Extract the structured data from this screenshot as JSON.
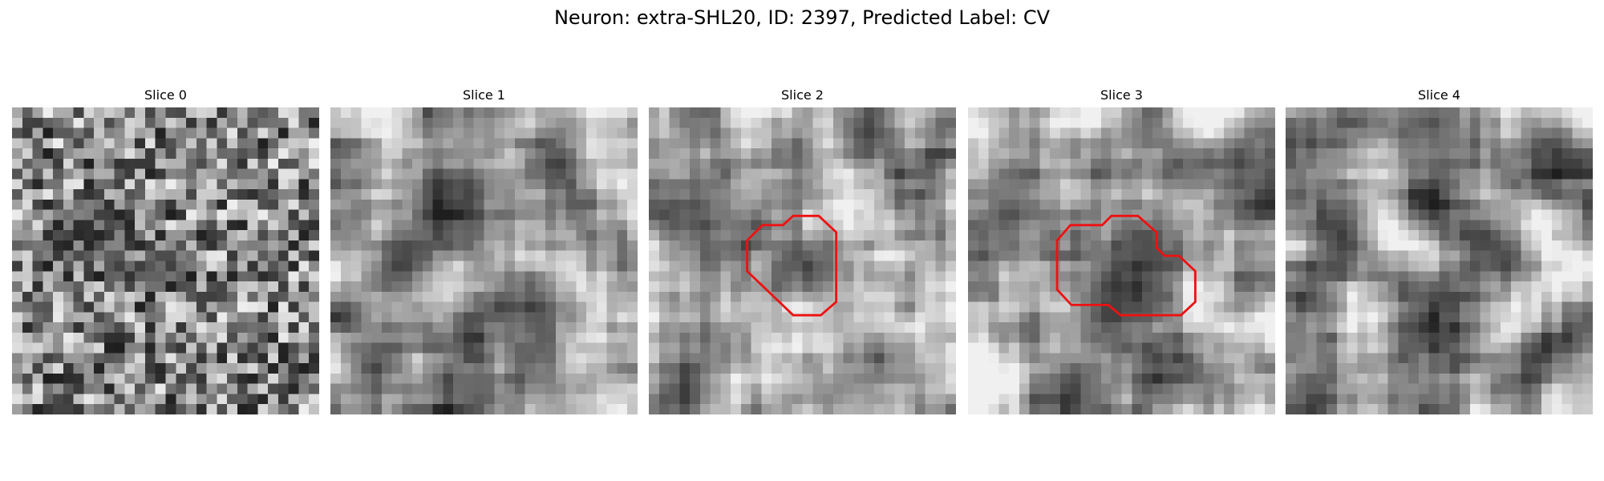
{
  "title": "Neuron: extra-SHL20, ID: 2397, Predicted Label: CV",
  "panels": [
    {
      "title": "Slice 0"
    },
    {
      "title": "Slice 1"
    },
    {
      "title": "Slice 2"
    },
    {
      "title": "Slice 3"
    },
    {
      "title": "Slice 4"
    }
  ]
}
